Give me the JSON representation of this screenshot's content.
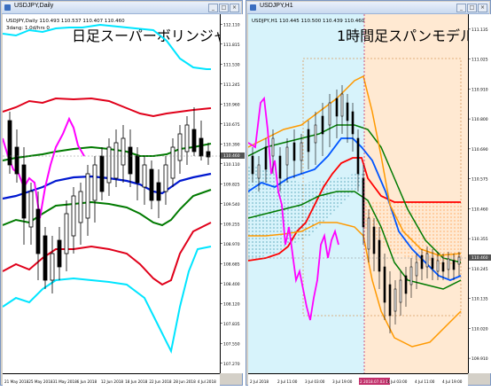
{
  "left_window": {
    "title": "USDJPY,Daily",
    "ohlc_text": "USDJPY,Daily  110.493 110.537 110.407 110.460",
    "indicator_text": "3dang: 1.0d/hrs 0",
    "overlay_label": "日足スーパーボリンジャー",
    "price_labels": [
      "112.110",
      "111.815",
      "111.530",
      "111.245",
      "110.960",
      "110.675",
      "110.390",
      "110.110",
      "109.825",
      "109.540",
      "109.255",
      "108.970",
      "108.685",
      "108.400",
      "108.120",
      "107.835",
      "107.550",
      "107.270"
    ],
    "current_price": "110.460",
    "time_labels": [
      "21 May 2018",
      "25 May 2018",
      "31 May 2018",
      "6 Jun 2018",
      "12 Jun 2018",
      "18 Jun 2018",
      "22 Jun 2018",
      "28 Jun 2018",
      "4 Jul 2018"
    ]
  },
  "right_window": {
    "title": "USDJPY,H1",
    "ohlc_text": "USDJPY,H1  110.445 110.500 110.439 110.460",
    "overlay_label": "1時間足スパンモデル",
    "price_labels": [
      "111.135",
      "111.025",
      "110.910",
      "110.800",
      "110.690",
      "110.575",
      "110.460",
      "110.355",
      "110.245",
      "110.135",
      "110.020",
      "109.910"
    ],
    "current_price": "110.460",
    "time_labels": [
      "2 Jul 2018",
      "2 Jul 11:00",
      "3 Jul 03:00",
      "3 Jul 19:00",
      "2 2018.07.03 16:00",
      "4 Jul 03:00",
      "4 Jul 11:00",
      "4 Jul 19:00"
    ],
    "highlight_time": "2018.07.03 16:00"
  },
  "window_buttons": {
    "minimize": "_",
    "maximize": "□",
    "close": "×"
  },
  "colors": {
    "bb_outer": "#00e5ff",
    "bb_2": "#e0001a",
    "bb_1": "#007a00",
    "bb_mid": "#0018d0",
    "chikou": "#ff00ff",
    "span_red": "#ff0000",
    "span_blue": "#0055ff",
    "bb_orange": "#ff9900",
    "band_green": "#007a00",
    "zone_blue": "#d7f3fb",
    "zone_orange": "#ffe9d2"
  }
}
